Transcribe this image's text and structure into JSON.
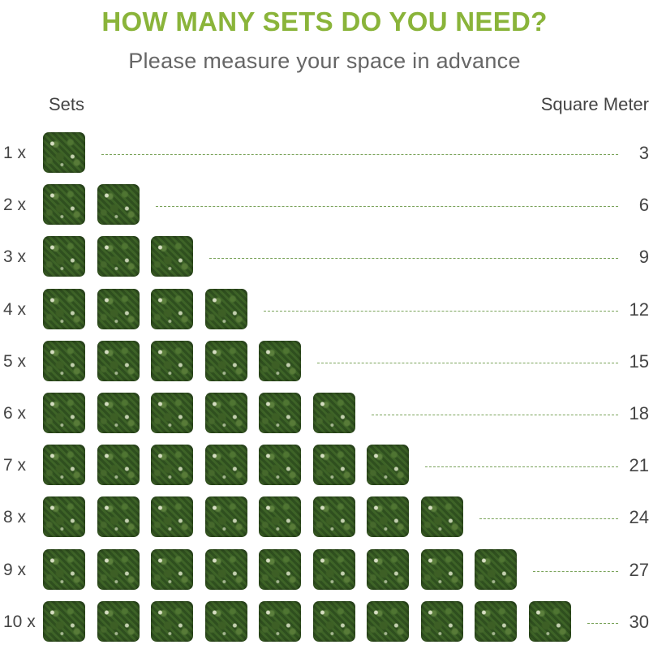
{
  "header": {
    "title": "HOW MANY SETS DO YOU NEED?",
    "subtitle": "Please measure your space in advance",
    "title_color": "#8ab43a"
  },
  "columns": {
    "sets_label": "Sets",
    "area_label": "Square Meter"
  },
  "rows": [
    {
      "label": "1 x",
      "sets": 1,
      "value": "3"
    },
    {
      "label": "2 x",
      "sets": 2,
      "value": "6"
    },
    {
      "label": "3 x",
      "sets": 3,
      "value": "9"
    },
    {
      "label": "4 x",
      "sets": 4,
      "value": "12"
    },
    {
      "label": "5 x",
      "sets": 5,
      "value": "15"
    },
    {
      "label": "6 x",
      "sets": 6,
      "value": "18"
    },
    {
      "label": "7 x",
      "sets": 7,
      "value": "21"
    },
    {
      "label": "8 x",
      "sets": 8,
      "value": "24"
    },
    {
      "label": "9 x",
      "sets": 9,
      "value": "27"
    },
    {
      "label": "10 x",
      "sets": 10,
      "value": "30"
    }
  ],
  "tile": {
    "icon": "hedge-panel-icon"
  },
  "colors": {
    "leader_line": "#7aa35a",
    "text": "#444444",
    "subtitle": "#666666"
  }
}
